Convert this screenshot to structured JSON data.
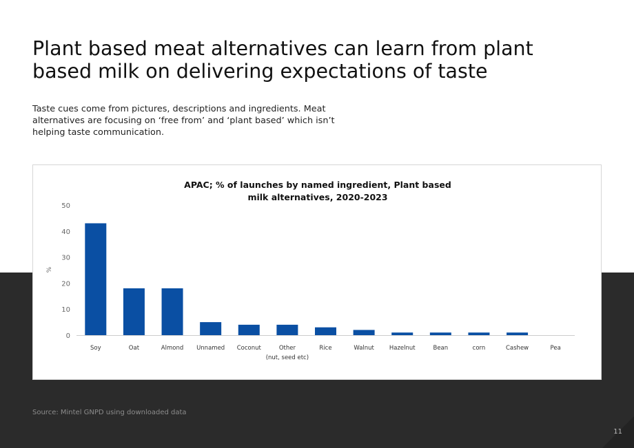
{
  "slide": {
    "title": "Plant based meat alternatives can learn from plant based milk on delivering expectations of taste",
    "subtitle": "Taste cues come from pictures, descriptions and ingredients. Meat alternatives are focusing on ‘free from’ and ‘plant based’ which isn’t helping taste communication.",
    "source": "Source: Mintel GNPD using downloaded data",
    "page_number": "11"
  },
  "chart_data": {
    "type": "bar",
    "title_lines": [
      "APAC; % of launches by named ingredient, Plant based",
      "milk alternatives, 2020-2023"
    ],
    "ylabel": "%",
    "xlabel": "",
    "ylim": [
      0,
      50
    ],
    "yticks": [
      0,
      10,
      20,
      30,
      40,
      50
    ],
    "grid": false,
    "legend": "none",
    "bar_color": "#0a4fa3",
    "categories": [
      [
        "Soy"
      ],
      [
        "Oat"
      ],
      [
        "Almond"
      ],
      [
        "Unnamed"
      ],
      [
        "Coconut"
      ],
      [
        "Other",
        "(nut, seed etc)"
      ],
      [
        "Rice"
      ],
      [
        "Walnut"
      ],
      [
        "Hazelnut"
      ],
      [
        "Bean"
      ],
      [
        "corn"
      ],
      [
        "Cashew"
      ],
      [
        "Pea"
      ]
    ],
    "values": [
      43,
      18,
      18,
      5,
      4,
      4,
      3,
      2,
      1,
      1,
      1,
      1,
      0
    ]
  }
}
